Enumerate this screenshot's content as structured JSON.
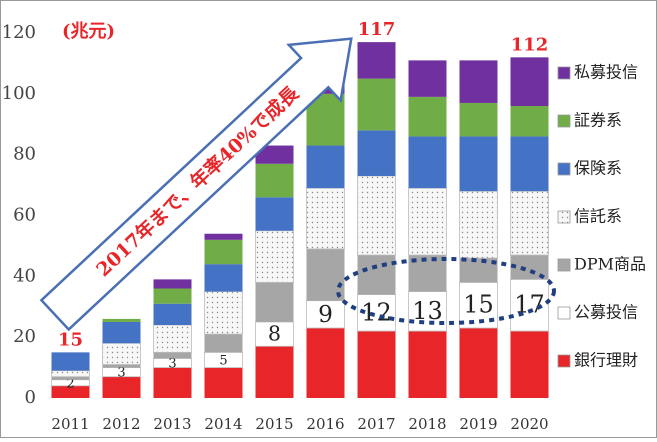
{
  "chart_data": {
    "type": "stacked_bar",
    "ylabel": "(兆元)",
    "annotation": "2017年まで、年率40%で成長",
    "categories": [
      "2011",
      "2012",
      "2013",
      "2014",
      "2015",
      "2016",
      "2017",
      "2018",
      "2019",
      "2020"
    ],
    "series": [
      {
        "name": "銀行理財",
        "color": "#e8262a",
        "values": [
          4,
          7,
          10,
          10,
          17,
          23,
          22,
          22,
          23,
          22
        ]
      },
      {
        "name": "公募投信",
        "color": "#ffffff",
        "values": [
          2,
          3,
          3,
          5,
          8,
          9,
          12,
          13,
          15,
          17
        ],
        "labels": true
      },
      {
        "name": "DPM商品",
        "color": "#a6a6a6",
        "values": [
          1,
          1,
          2,
          6,
          13,
          17,
          13,
          12,
          8,
          8
        ]
      },
      {
        "name": "信託系",
        "color": "#f4f4f4",
        "pattern": "dots",
        "values": [
          2,
          7,
          9,
          14,
          17,
          20,
          26,
          22,
          22,
          21
        ]
      },
      {
        "name": "保険系",
        "color": "#4472c4",
        "values": [
          6,
          7,
          7,
          9,
          11,
          14,
          15,
          17,
          18,
          18
        ]
      },
      {
        "name": "証券系",
        "color": "#70ad47",
        "values": [
          0,
          1,
          5,
          8,
          11,
          17,
          17,
          13,
          11,
          10
        ]
      },
      {
        "name": "私募投信",
        "color": "#7030a0",
        "values": [
          0,
          0,
          3,
          2,
          6,
          8,
          12,
          12,
          14,
          16
        ]
      }
    ],
    "totals": [
      {
        "category": "2011",
        "value": 15
      },
      {
        "category": "2017",
        "value": 117
      },
      {
        "category": "2020",
        "value": 112
      }
    ],
    "ylim": [
      0,
      120
    ],
    "yticks": [
      0,
      20,
      40,
      60,
      80,
      100,
      120
    ],
    "grid": false,
    "legend": "right"
  }
}
